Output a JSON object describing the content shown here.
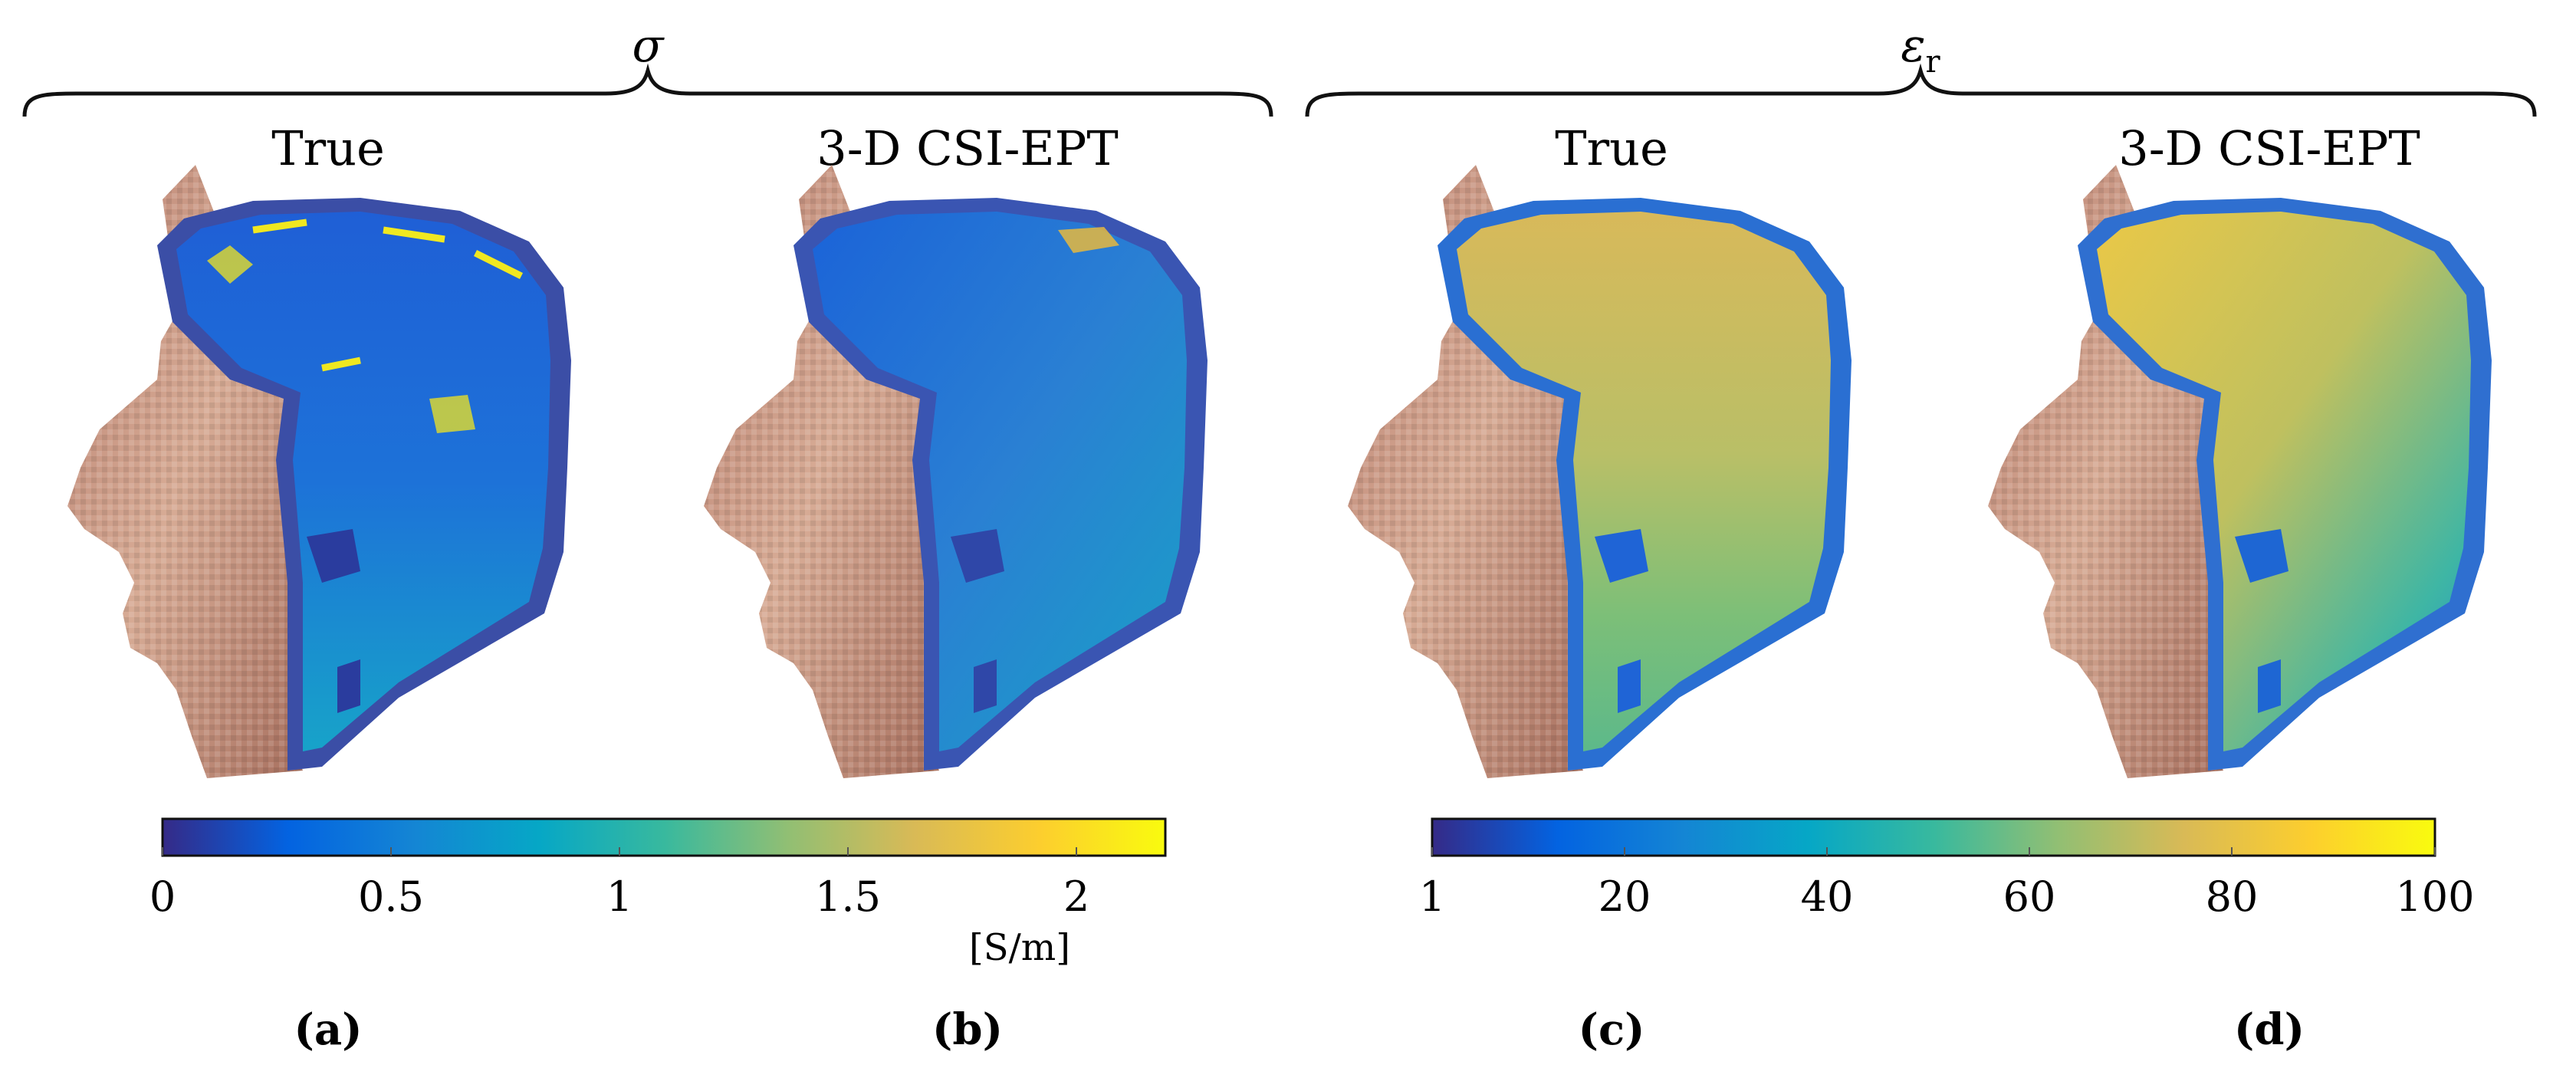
{
  "groups": [
    {
      "symbol": "σ"
    },
    {
      "symbol": "ε",
      "subscript": "r"
    }
  ],
  "panels": [
    {
      "title": "True",
      "label": "(a)"
    },
    {
      "title": "3-D CSI-EPT",
      "label": "(b)"
    },
    {
      "title": "True",
      "label": "(c)"
    },
    {
      "title": "3-D CSI-EPT",
      "label": "(d)"
    }
  ],
  "colorbars": [
    {
      "ticks": [
        "0",
        "0.5",
        "1",
        "1.5",
        "2"
      ],
      "unit": "[S/m]"
    },
    {
      "ticks": [
        "1",
        "20",
        "40",
        "60",
        "80",
        "100"
      ],
      "unit": ""
    }
  ],
  "colors": {
    "parula": [
      "#352a87",
      "#0363e1",
      "#1485d4",
      "#06a7c6",
      "#38b99e",
      "#92bf73",
      "#d9ba56",
      "#fcce2e",
      "#f9fb0e"
    ],
    "skin": "#c99a84",
    "skin_dark": "#8f5f4f"
  }
}
